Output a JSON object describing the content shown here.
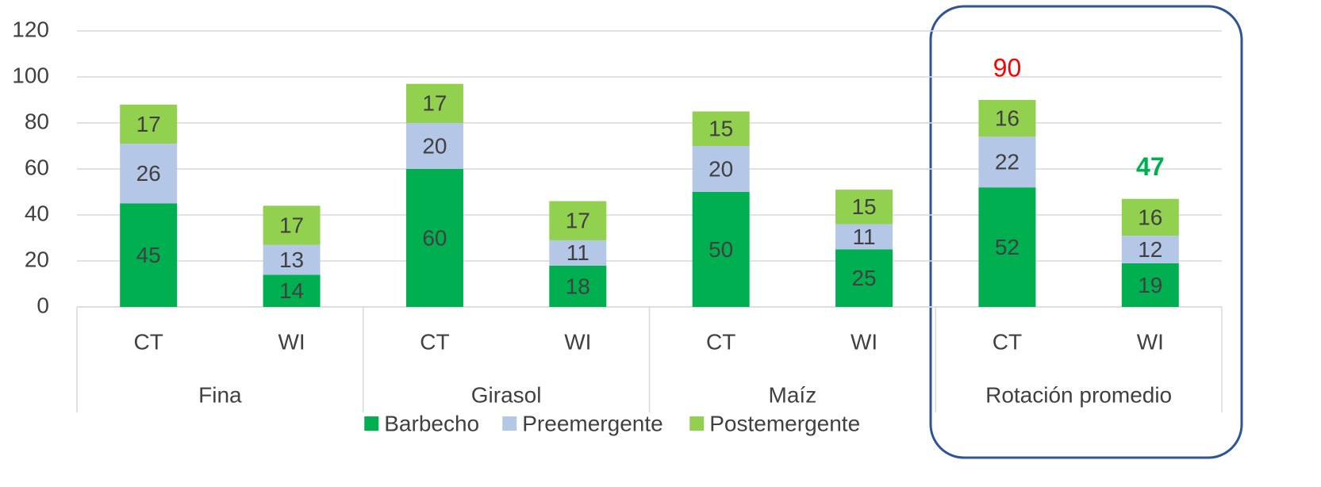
{
  "chart_data": {
    "type": "stacked_bar",
    "categories": [
      "CT",
      "WI",
      "CT",
      "WI",
      "CT",
      "WI",
      "CT",
      "WI"
    ],
    "groups": [
      "Fina",
      "Girasol",
      "Maíz",
      "Rotación promedio"
    ],
    "series": [
      {
        "name": "Barbecho",
        "color": "#00b050",
        "values": [
          45,
          14,
          60,
          18,
          50,
          25,
          52,
          19
        ]
      },
      {
        "name": "Preemergente",
        "color": "#b4c7e7",
        "values": [
          26,
          13,
          20,
          11,
          20,
          11,
          22,
          12
        ]
      },
      {
        "name": "Postemergente",
        "color": "#92d050",
        "values": [
          17,
          17,
          17,
          17,
          15,
          15,
          16,
          16
        ]
      }
    ],
    "totals": [
      null,
      null,
      null,
      null,
      null,
      null,
      90,
      47
    ],
    "total_colors": [
      null,
      null,
      null,
      null,
      null,
      null,
      "#ff0000",
      "#00b050"
    ],
    "ylim": [
      0,
      120
    ],
    "yticks": [
      0,
      20,
      40,
      60,
      80,
      100,
      120
    ],
    "grid": true,
    "legend": "bottom"
  }
}
